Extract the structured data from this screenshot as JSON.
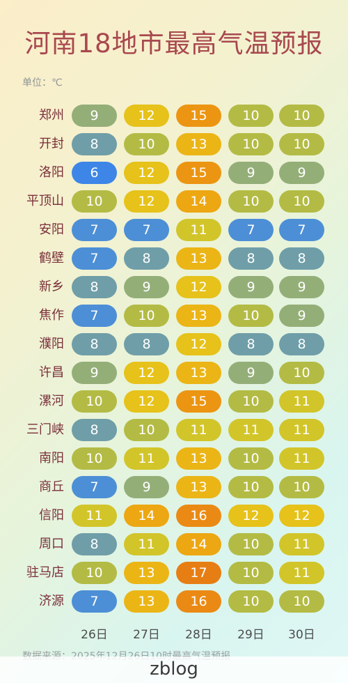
{
  "title": "河南18地市最高气温预报",
  "unit_label": "单位：℃",
  "source": "数据来源：2025年12月26日10时最高气温预报",
  "watermark": "zblog",
  "colors": {
    "6": "#3d86e8",
    "7": "#4d8fd6",
    "8": "#6f9ea8",
    "9": "#94ae78",
    "10": "#b3bb44",
    "11": "#d2c52a",
    "12": "#e6c21a",
    "13": "#ebb516",
    "14": "#eda712",
    "15": "#ec9512",
    "16": "#ea8a14",
    "17": "#e77e14"
  },
  "chart_data": {
    "type": "table",
    "title": "河南18地市最高气温预报",
    "unit": "℃",
    "columns": [
      "26日",
      "27日",
      "28日",
      "29日",
      "30日"
    ],
    "rows": [
      {
        "city": "郑州",
        "values": [
          9,
          12,
          15,
          10,
          10
        ]
      },
      {
        "city": "开封",
        "values": [
          8,
          10,
          13,
          10,
          10
        ]
      },
      {
        "city": "洛阳",
        "values": [
          6,
          12,
          15,
          9,
          9
        ]
      },
      {
        "city": "平顶山",
        "values": [
          10,
          12,
          14,
          10,
          10
        ]
      },
      {
        "city": "安阳",
        "values": [
          7,
          7,
          11,
          7,
          7
        ]
      },
      {
        "city": "鹤壁",
        "values": [
          7,
          8,
          13,
          8,
          8
        ]
      },
      {
        "city": "新乡",
        "values": [
          8,
          9,
          12,
          9,
          9
        ]
      },
      {
        "city": "焦作",
        "values": [
          7,
          10,
          13,
          10,
          9
        ]
      },
      {
        "city": "濮阳",
        "values": [
          8,
          8,
          12,
          8,
          8
        ]
      },
      {
        "city": "许昌",
        "values": [
          9,
          12,
          13,
          9,
          10
        ]
      },
      {
        "city": "漯河",
        "values": [
          10,
          12,
          15,
          10,
          11
        ]
      },
      {
        "city": "三门峡",
        "values": [
          8,
          10,
          11,
          11,
          11
        ]
      },
      {
        "city": "南阳",
        "values": [
          10,
          11,
          13,
          10,
          11
        ]
      },
      {
        "city": "商丘",
        "values": [
          7,
          9,
          13,
          10,
          10
        ]
      },
      {
        "city": "信阳",
        "values": [
          11,
          14,
          16,
          12,
          12
        ]
      },
      {
        "city": "周口",
        "values": [
          8,
          11,
          14,
          10,
          11
        ]
      },
      {
        "city": "驻马店",
        "values": [
          10,
          13,
          17,
          10,
          11
        ]
      },
      {
        "city": "济源",
        "values": [
          7,
          13,
          16,
          10,
          10
        ]
      }
    ]
  }
}
